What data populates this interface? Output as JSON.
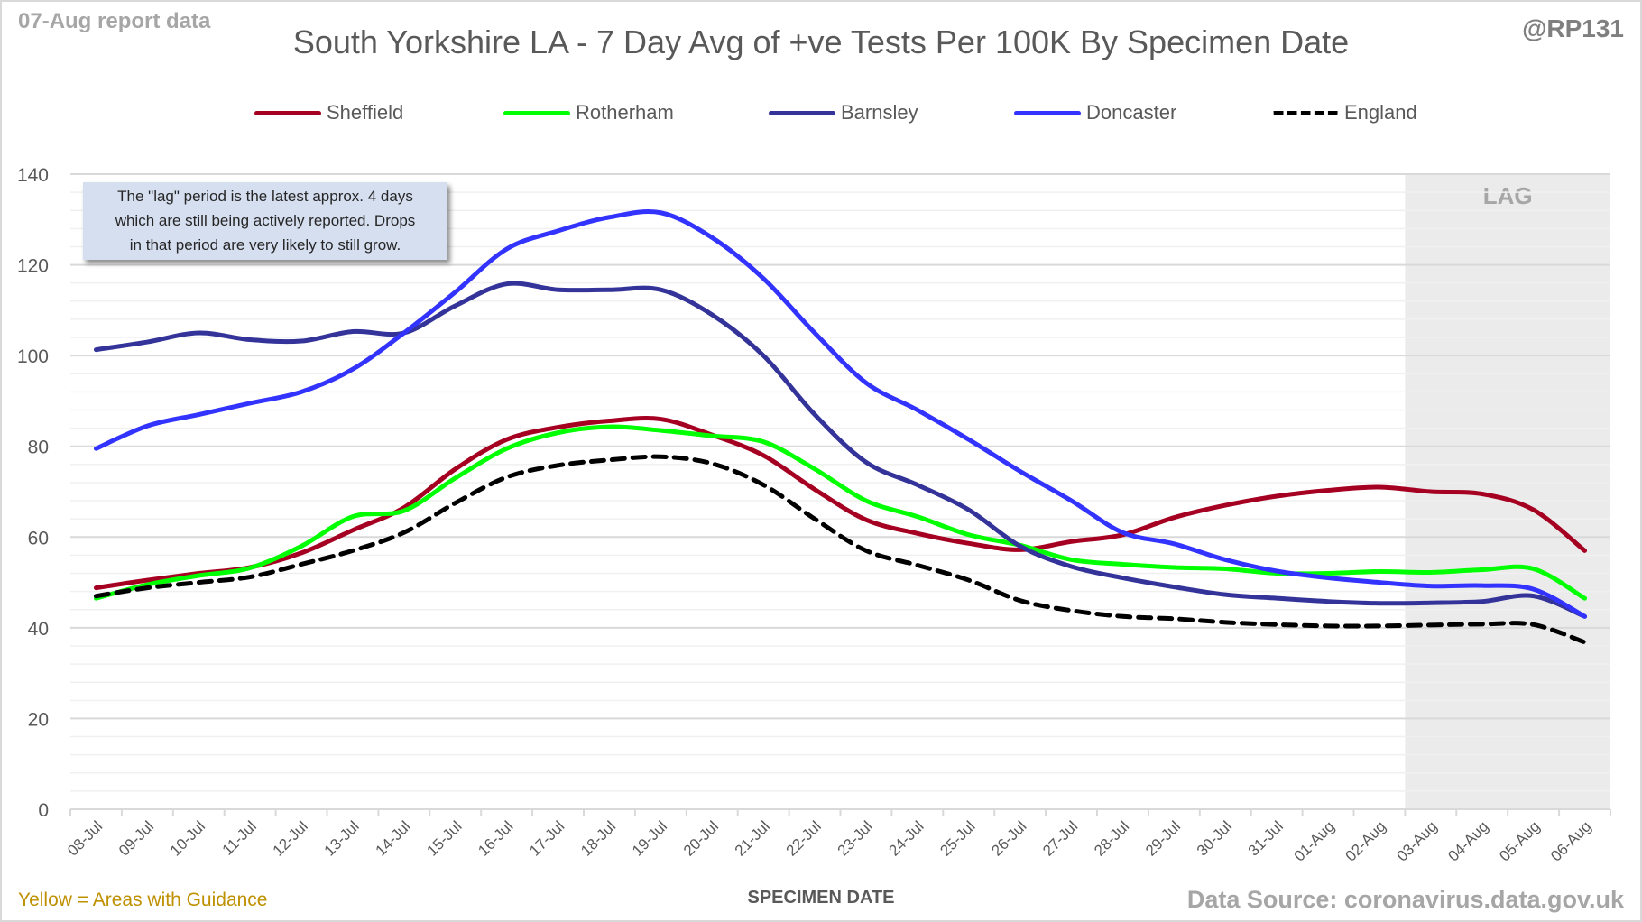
{
  "header": {
    "report_label": "07-Aug report data",
    "handle": "@RP131",
    "title": "South Yorkshire LA - 7 Day Avg of +ve Tests Per 100K By Specimen Date"
  },
  "note": {
    "lines": [
      "The \"lag\" period is the latest approx. 4 days",
      "which are still being actively reported.  Drops",
      "in that period are very likely to still grow."
    ]
  },
  "lag_label": "LAG",
  "footer": {
    "left": "Yellow = Areas with Guidance",
    "xlabel": "SPECIMEN DATE",
    "source": "Data Source: coronavirus.data.gov.uk"
  },
  "chart_data": {
    "type": "line",
    "title": "South Yorkshire LA - 7 Day Avg of +ve Tests Per 100K By Specimen Date",
    "xlabel": "SPECIMEN DATE",
    "ylabel": "",
    "ylim": [
      0,
      140
    ],
    "yticks": [
      0,
      20,
      40,
      60,
      80,
      100,
      120,
      140
    ],
    "grid": true,
    "legend_position": "top",
    "lag_region": {
      "from": "03-Aug",
      "to": "06-Aug",
      "label": "LAG"
    },
    "categories": [
      "08-Jul",
      "09-Jul",
      "10-Jul",
      "11-Jul",
      "12-Jul",
      "13-Jul",
      "14-Jul",
      "15-Jul",
      "16-Jul",
      "17-Jul",
      "18-Jul",
      "19-Jul",
      "20-Jul",
      "21-Jul",
      "22-Jul",
      "23-Jul",
      "24-Jul",
      "25-Jul",
      "26-Jul",
      "27-Jul",
      "28-Jul",
      "29-Jul",
      "30-Jul",
      "31-Jul",
      "01-Aug",
      "02-Aug",
      "03-Aug",
      "04-Aug",
      "05-Aug",
      "06-Aug"
    ],
    "series": [
      {
        "name": "Sheffield",
        "color": "#a50021",
        "dashed": false,
        "values": [
          48.8,
          50.5,
          52.0,
          53.3,
          56.5,
          61.5,
          66.5,
          75.0,
          81.5,
          84.2,
          85.6,
          86.0,
          82.5,
          78.0,
          70.5,
          63.8,
          60.8,
          58.6,
          57.2,
          59.0,
          60.5,
          64.3,
          67.0,
          69.0,
          70.3,
          71.0,
          70.0,
          69.5,
          66.0,
          57.0
        ]
      },
      {
        "name": "Rotherham",
        "color": "#00ff00",
        "dashed": false,
        "values": [
          46.5,
          49.5,
          51.5,
          53.2,
          58.0,
          64.5,
          65.8,
          73.0,
          79.5,
          83.0,
          84.3,
          83.5,
          82.3,
          81.0,
          75.0,
          68.0,
          64.5,
          60.5,
          58.2,
          55.0,
          54.0,
          53.3,
          53.0,
          52.0,
          52.0,
          52.4,
          52.2,
          52.8,
          53.0,
          46.5
        ]
      },
      {
        "name": "Barnsley",
        "color": "#333399",
        "dashed": false,
        "values": [
          101.3,
          103.0,
          105.0,
          103.5,
          103.2,
          105.3,
          105.0,
          111.0,
          115.8,
          114.5,
          114.5,
          114.5,
          109.0,
          100.0,
          87.0,
          76.5,
          71.5,
          66.0,
          58.0,
          53.5,
          51.0,
          49.0,
          47.3,
          46.5,
          45.8,
          45.4,
          45.5,
          45.8,
          47.0,
          42.5
        ]
      },
      {
        "name": "Doncaster",
        "color": "#3333ff",
        "dashed": false,
        "values": [
          79.5,
          84.5,
          87.0,
          89.5,
          92.0,
          97.0,
          105.0,
          114.0,
          123.5,
          127.5,
          130.5,
          131.5,
          126.0,
          117.0,
          105.0,
          94.0,
          88.0,
          81.5,
          74.5,
          68.0,
          61.0,
          58.5,
          55.0,
          52.5,
          51.0,
          50.0,
          49.2,
          49.3,
          48.5,
          42.5
        ]
      },
      {
        "name": "England",
        "color": "#000000",
        "dashed": true,
        "values": [
          47.0,
          48.8,
          50.0,
          51.2,
          54.0,
          57.0,
          61.0,
          67.5,
          73.2,
          75.8,
          77.0,
          77.7,
          76.2,
          71.5,
          64.0,
          57.0,
          53.8,
          50.5,
          46.0,
          43.8,
          42.5,
          42.0,
          41.2,
          40.7,
          40.4,
          40.4,
          40.6,
          40.8,
          40.7,
          36.8
        ]
      }
    ]
  }
}
